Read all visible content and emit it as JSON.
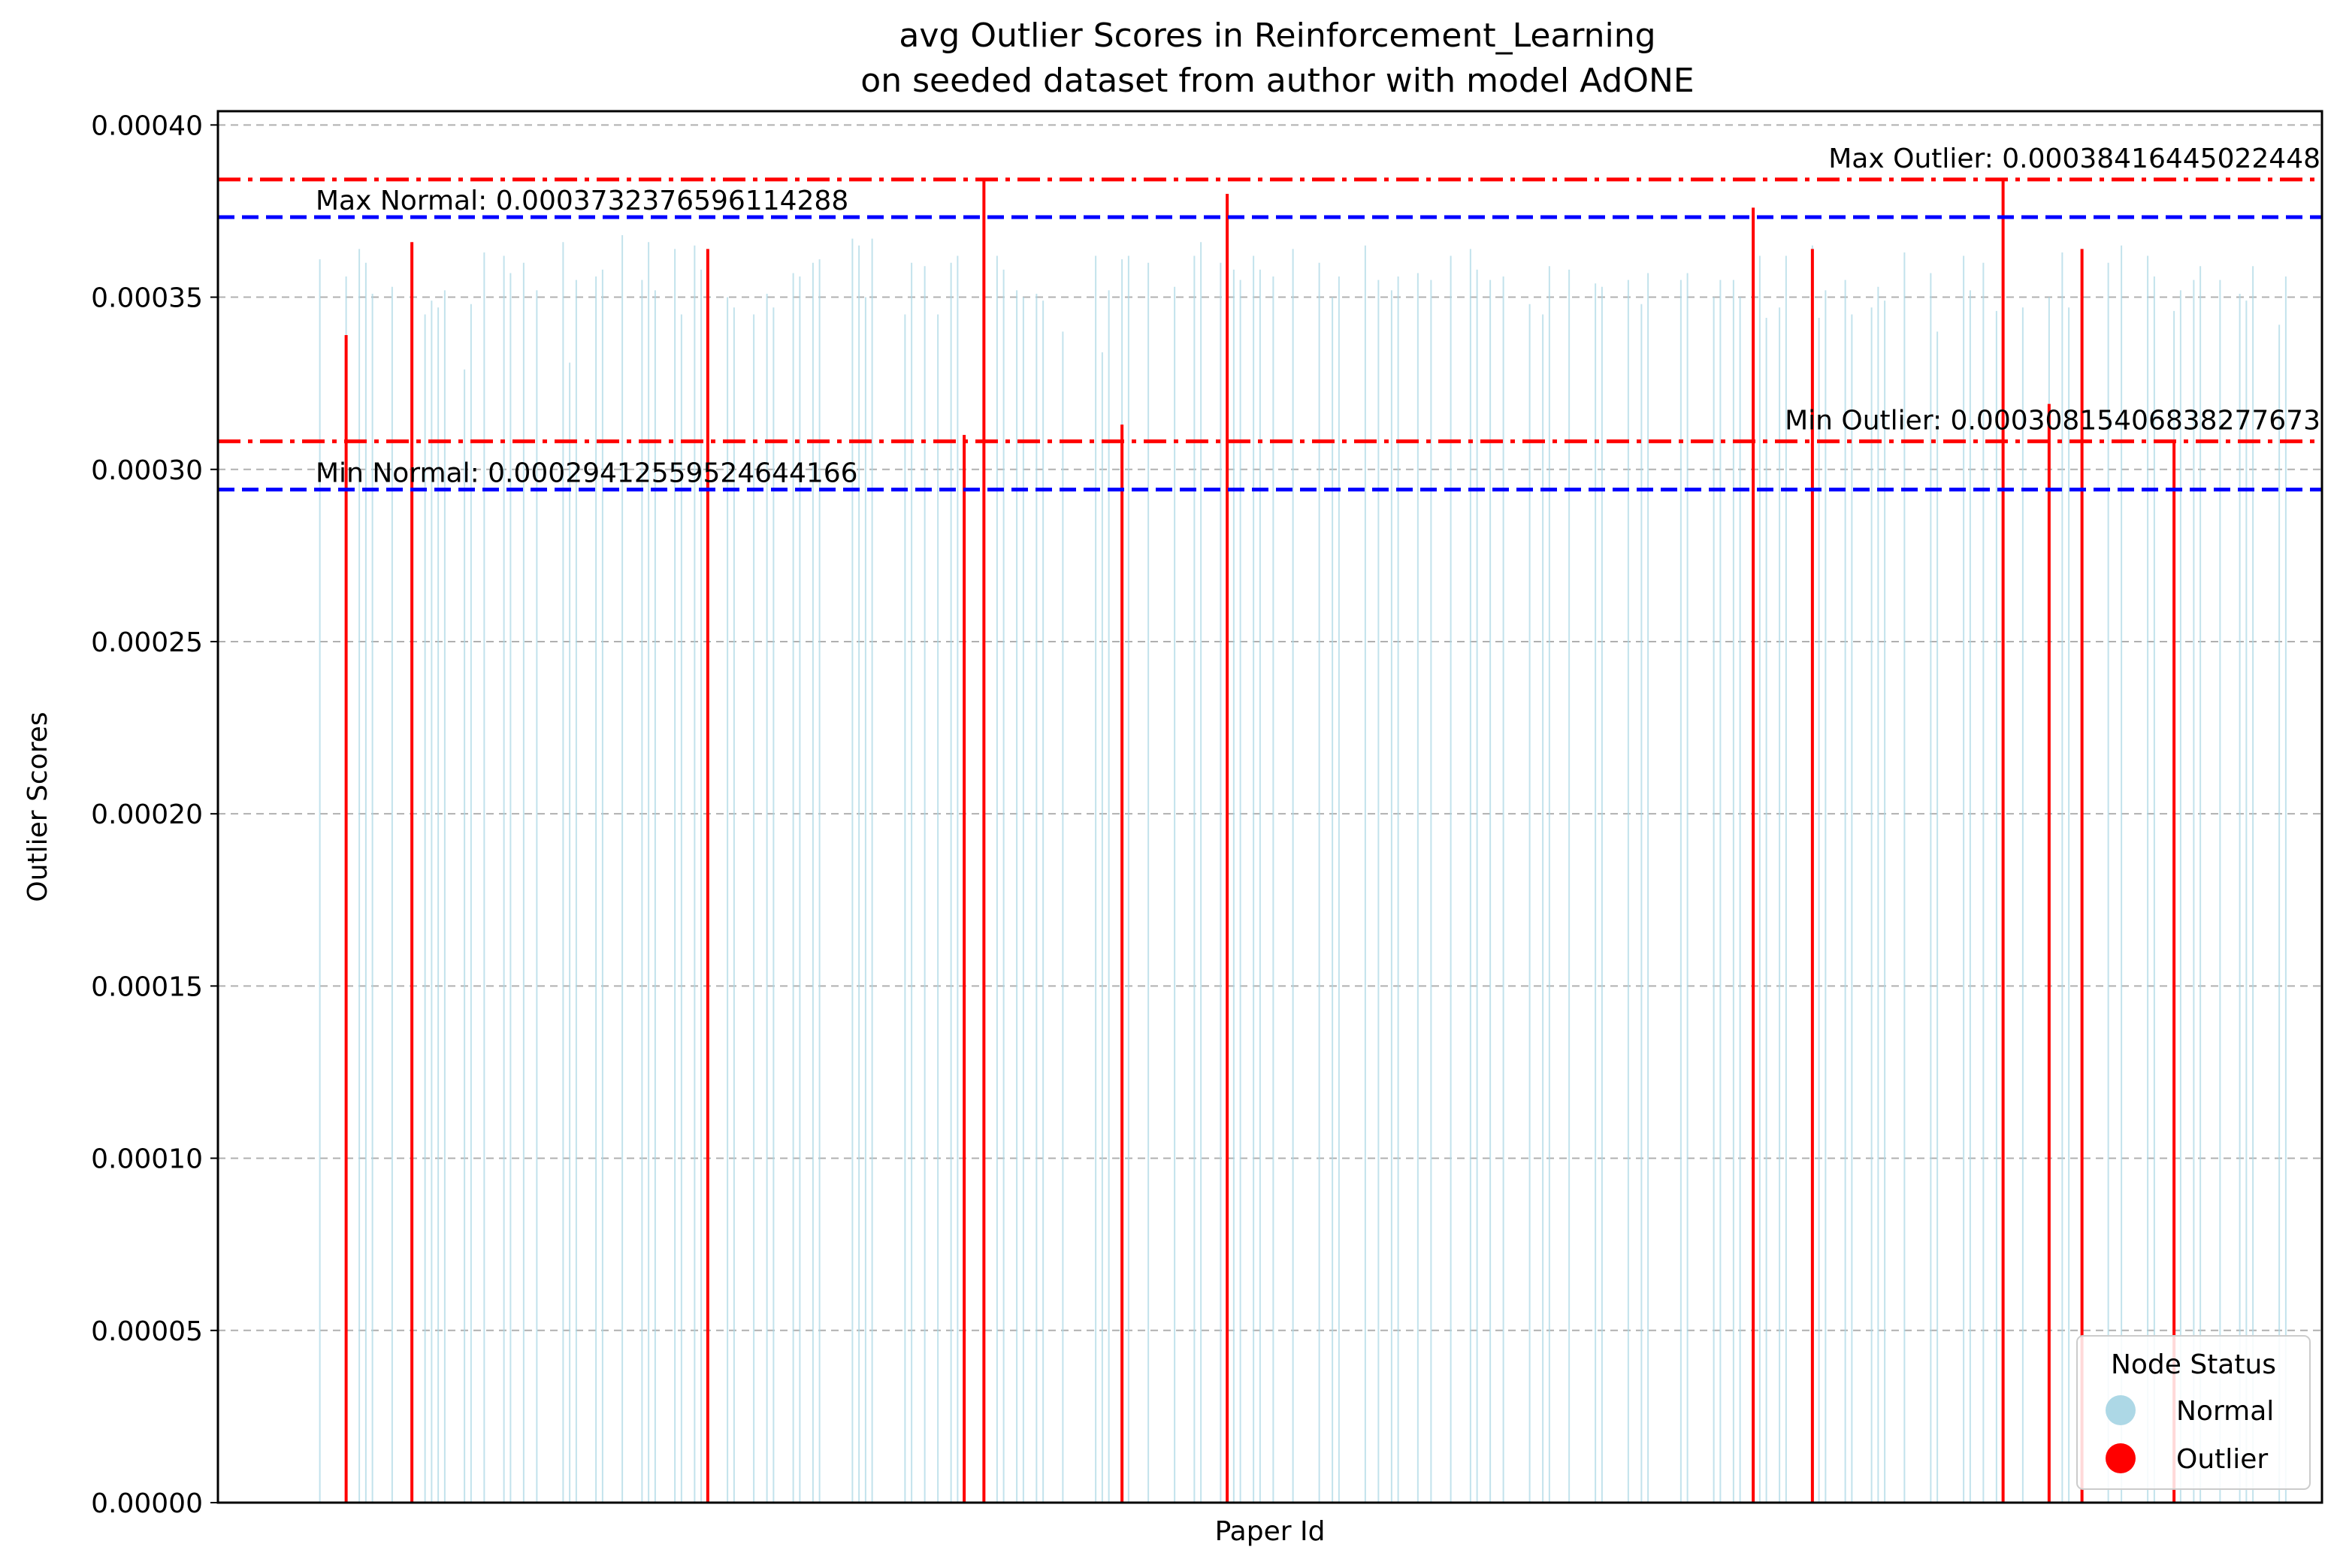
{
  "chart_data": {
    "type": "bar",
    "title_line1": "avg Outlier Scores in Reinforcement_Learning",
    "title_line2": "on seeded dataset from author with model AdONE",
    "xlabel": "Paper Id",
    "ylabel": "Outlier Scores",
    "ylim": [
      0,
      0.000404
    ],
    "yticks": [
      "0.00000",
      "0.00005",
      "0.00010",
      "0.00015",
      "0.00020",
      "0.00025",
      "0.00030",
      "0.00035",
      "0.00040"
    ],
    "ytick_values": [
      0,
      5e-05,
      0.0001,
      0.00015,
      0.0002,
      0.00025,
      0.0003,
      0.00035,
      0.0004
    ],
    "grid": "y-dashed",
    "x_count": 320,
    "normal_bars": {
      "color": "#add8e6",
      "x": [
        15,
        19,
        21,
        22,
        23,
        26,
        31,
        32,
        33,
        34,
        37,
        38,
        40,
        43,
        44,
        46,
        48,
        52,
        53,
        54,
        57,
        58,
        61,
        64,
        65,
        66,
        69,
        70,
        72,
        73,
        77,
        78,
        81,
        83,
        84,
        87,
        88,
        90,
        91,
        96,
        97,
        98,
        99,
        104,
        105,
        107,
        109,
        111,
        112,
        118,
        119,
        121,
        122,
        124,
        125,
        128,
        133,
        134,
        135,
        137,
        138,
        141,
        145,
        148,
        149,
        152,
        154,
        155,
        157,
        158,
        160,
        163,
        167,
        169,
        170,
        174,
        176,
        178,
        179,
        182,
        184,
        187,
        190,
        191,
        193,
        195,
        199,
        201,
        202,
        205,
        209,
        210,
        214,
        216,
        217,
        222,
        223,
        227,
        228,
        230,
        231,
        234,
        235,
        237,
        238,
        242,
        243,
        244,
        247,
        248,
        251,
        252,
        253,
        256,
        260,
        261,
        265,
        266,
        268,
        270,
        271,
        274,
        278,
        280,
        281,
        283,
        287,
        289,
        293,
        294,
        297,
        298,
        300,
        301,
        304,
        307,
        308,
        309,
        313,
        314
      ],
      "values": [
        0.000361,
        0.000356,
        0.000364,
        0.00036,
        0.000351,
        0.000353,
        0.000345,
        0.000349,
        0.000347,
        0.000352,
        0.000329,
        0.000348,
        0.000363,
        0.000362,
        0.000357,
        0.00036,
        0.000352,
        0.000366,
        0.000331,
        0.000355,
        0.000356,
        0.000358,
        0.000368,
        0.000355,
        0.000366,
        0.000352,
        0.000364,
        0.000345,
        0.000365,
        0.000358,
        0.00035,
        0.000347,
        0.000345,
        0.000351,
        0.000347,
        0.000357,
        0.000356,
        0.00036,
        0.000361,
        0.000367,
        0.000365,
        0.00035,
        0.000367,
        0.000345,
        0.00036,
        0.000359,
        0.000345,
        0.00036,
        0.000362,
        0.000362,
        0.000358,
        0.000352,
        0.00035,
        0.000351,
        0.000349,
        0.00034,
        0.000362,
        0.000334,
        0.000352,
        0.000361,
        0.000362,
        0.00036,
        0.000353,
        0.000362,
        0.000366,
        0.00036,
        0.000358,
        0.000355,
        0.000362,
        0.000358,
        0.000356,
        0.000364,
        0.00036,
        0.00035,
        0.000356,
        0.000365,
        0.000355,
        0.000352,
        0.000356,
        0.000357,
        0.000355,
        0.000362,
        0.000364,
        0.000358,
        0.000355,
        0.000356,
        0.000348,
        0.000345,
        0.000359,
        0.000358,
        0.000354,
        0.000353,
        0.000355,
        0.000348,
        0.000357,
        0.000355,
        0.000357,
        0.00035,
        0.000355,
        0.000355,
        0.00035,
        0.000362,
        0.000344,
        0.000347,
        0.000362,
        0.000365,
        0.000344,
        0.000352,
        0.000355,
        0.000345,
        0.000347,
        0.000353,
        0.000349,
        0.000363,
        0.000357,
        0.00034,
        0.000362,
        0.000352,
        0.00036,
        0.000346,
        0.000349,
        0.000347,
        0.00035,
        0.000363,
        0.000347,
        0.000354,
        0.00036,
        0.000365,
        0.000362,
        0.000356,
        0.000346,
        0.000352,
        0.000355,
        0.000359,
        0.000355,
        0.000351,
        0.000349,
        0.000359,
        0.000342,
        0.000356
      ]
    },
    "outlier_bars": {
      "color": "#ff0000",
      "x": [
        19,
        29,
        74,
        113,
        116,
        137,
        153,
        233,
        242,
        271,
        278,
        283,
        297
      ],
      "values": [
        0.000339,
        0.000366,
        0.000364,
        0.00031,
        0.000384,
        0.000313,
        0.00038,
        0.000376,
        0.000364,
        0.000384,
        0.000319,
        0.000364,
        0.000308
      ]
    },
    "reference_lines": [
      {
        "label": "Max Normal: 0.0003732376596114288",
        "value": 0.0003732376596114288,
        "color": "#0000ff",
        "style": "dashed"
      },
      {
        "label": "Min Normal: 0.00029412559524644166",
        "value": 0.00029412559524644166,
        "color": "#0000ff",
        "style": "dashed"
      },
      {
        "label": "Max Outlier: 0.00038416445022448",
        "value": 0.00038416445022448,
        "color": "#ff0000",
        "style": "dashdot"
      },
      {
        "label": "Min Outlier: 0.00030815406838277673",
        "value": 0.00030815406838277675,
        "color": "#ff0000",
        "style": "dashdot"
      }
    ],
    "legend": {
      "title": "Node Status",
      "position": "bottom-right",
      "items": [
        {
          "label": "Normal",
          "color": "#add8e6"
        },
        {
          "label": "Outlier",
          "color": "#ff0000"
        }
      ]
    }
  }
}
